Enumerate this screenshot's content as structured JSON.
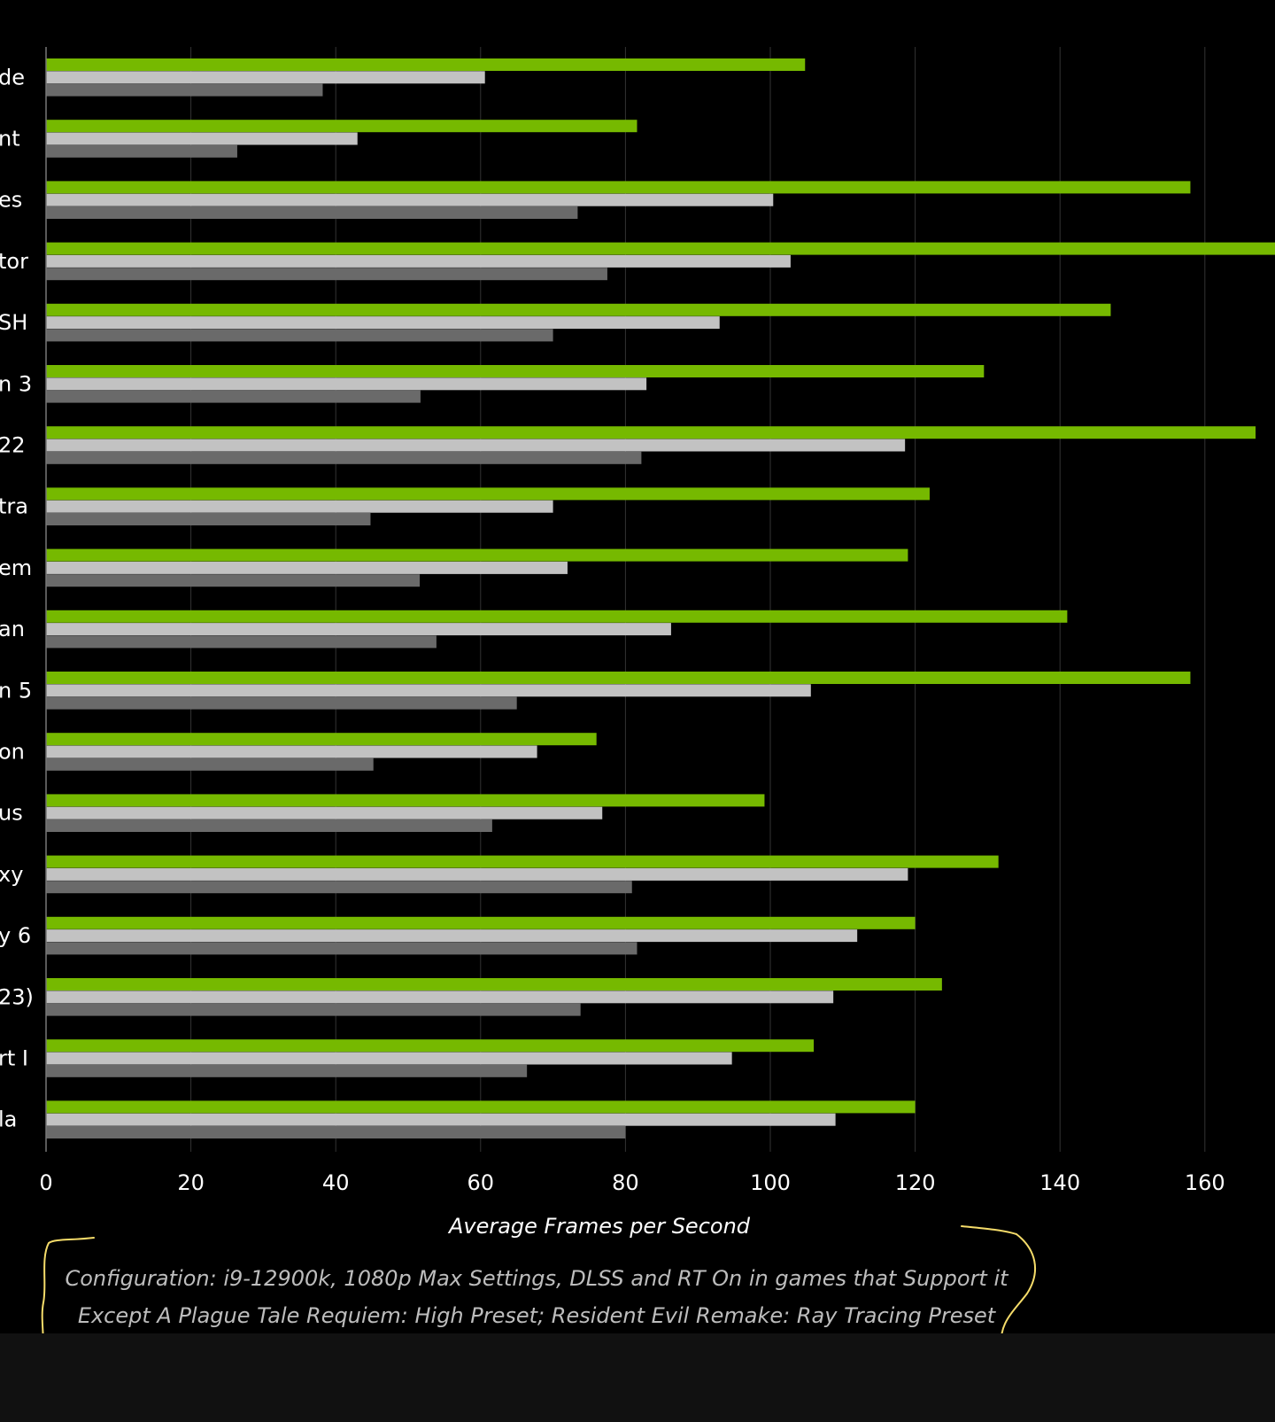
{
  "colors": {
    "background": "#000000",
    "bottom_band": "#111111",
    "grid": "#333333",
    "axis": "#777777",
    "text": "#ffffff",
    "note_text": "#bdbdbd",
    "bracket": "#f5dc6a",
    "series": [
      "#76b900",
      "#c2c2c2",
      "#6a6a6a"
    ]
  },
  "chart_data": {
    "type": "bar",
    "orientation": "horizontal",
    "categories": [
      "de",
      "nt",
      "es",
      "tor",
      "SH",
      "n 3",
      "22",
      "tra",
      "em",
      "an",
      "n 5",
      "on",
      "us",
      "xy",
      "y 6",
      "23)",
      "rt I",
      "la"
    ],
    "series": [
      {
        "values": [
          104.8,
          81.6,
          158.0,
          170.0,
          147.0,
          129.5,
          167.0,
          122.0,
          119.0,
          141.0,
          158.0,
          76.0,
          99.2,
          131.5,
          120.0,
          123.7,
          106.0,
          120.0
        ]
      },
      {
        "values": [
          60.6,
          43.0,
          100.4,
          102.8,
          93.0,
          82.9,
          118.6,
          70.0,
          72.0,
          86.3,
          105.6,
          67.8,
          76.8,
          119.0,
          112.0,
          108.7,
          94.7,
          109.0
        ]
      },
      {
        "values": [
          38.2,
          26.4,
          73.4,
          77.5,
          70.0,
          51.7,
          82.2,
          44.8,
          51.6,
          53.9,
          65.0,
          45.2,
          61.6,
          80.9,
          81.6,
          73.8,
          66.4,
          80.0
        ]
      }
    ],
    "xlabel": "Average Frames per Second",
    "xlim": [
      0,
      170
    ],
    "xticks": [
      0,
      20,
      40,
      60,
      80,
      100,
      120,
      140,
      160
    ],
    "grid": true,
    "legend": "none"
  },
  "notes": {
    "line1": "Configuration: i9-12900k, 1080p Max Settings, DLSS and RT On in games that Support it",
    "line2": "Except A Plague Tale Requiem: High Preset;   Resident Evil Remake: Ray Tracing Preset"
  }
}
